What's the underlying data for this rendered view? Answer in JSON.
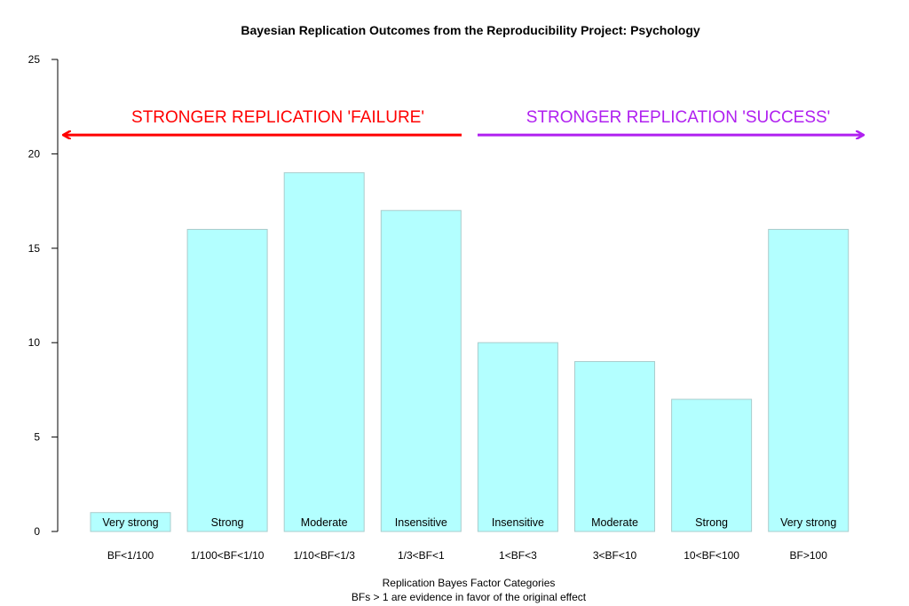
{
  "chart_data": {
    "type": "bar",
    "title": "Bayesian Replication Outcomes from the Reproducibility Project: Psychology",
    "xlabel": "Replication Bayes Factor Categories",
    "xlabel_sub": "BFs > 1 are evidence in favor of the original effect",
    "ylabel": "",
    "ylim": [
      0,
      25
    ],
    "yticks": [
      0,
      5,
      10,
      15,
      20,
      25
    ],
    "categories": [
      "BF<1/100",
      "1/100<BF<1/10",
      "1/10<BF<1/3",
      "1/3<BF<1",
      "1<BF<3",
      "3<BF<10",
      "10<BF<100",
      "BF>100"
    ],
    "values": [
      1,
      16,
      19,
      17,
      10,
      9,
      7,
      16
    ],
    "bar_labels": [
      "Very strong",
      "Strong",
      "Moderate",
      "Insensitive",
      "Insensitive",
      "Moderate",
      "Strong",
      "Very strong"
    ],
    "bar_color": "#b3ffff",
    "bar_border_color": "#aacccc",
    "annotations": [
      {
        "text": "STRONGER REPLICATION 'FAILURE'",
        "direction": "left",
        "color": "#ff0000",
        "y_value": 21
      },
      {
        "text": "STRONGER REPLICATION 'SUCCESS'",
        "direction": "right",
        "color": "#b020f0",
        "y_value": 21
      }
    ],
    "grid": false,
    "legend": "none"
  }
}
